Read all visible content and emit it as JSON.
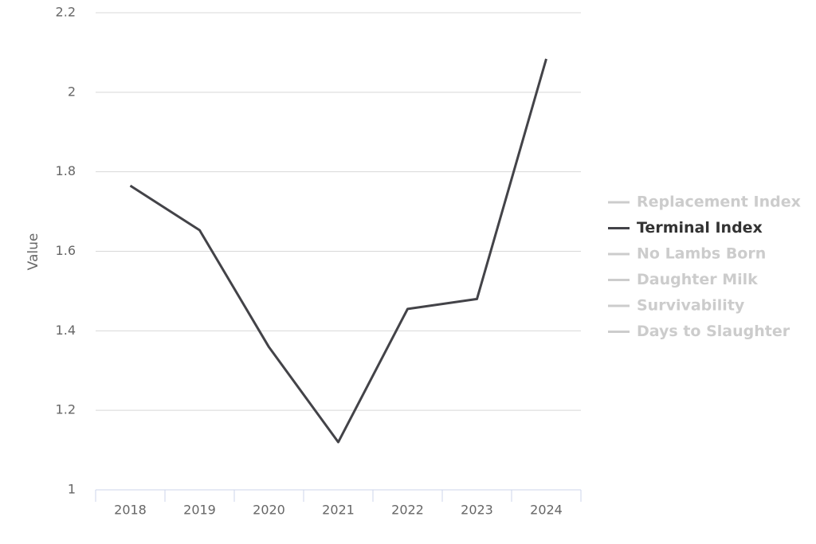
{
  "chart_data": {
    "type": "line",
    "y_label": "Value",
    "categories": [
      "2018",
      "2019",
      "2020",
      "2021",
      "2022",
      "2023",
      "2024"
    ],
    "series": [
      {
        "name": "Replacement Index",
        "color": "#cccccc",
        "visible": false,
        "values": [
          null,
          null,
          null,
          null,
          null,
          null,
          null
        ]
      },
      {
        "name": "Terminal Index",
        "color": "#434348",
        "visible": true,
        "values": [
          1.765,
          1.653,
          1.359,
          1.12,
          1.455,
          1.48,
          2.084
        ]
      },
      {
        "name": "No Lambs Born",
        "color": "#cccccc",
        "visible": false,
        "values": [
          null,
          null,
          null,
          null,
          null,
          null,
          null
        ]
      },
      {
        "name": "Daughter Milk",
        "color": "#cccccc",
        "visible": false,
        "values": [
          null,
          null,
          null,
          null,
          null,
          null,
          null
        ]
      },
      {
        "name": "Survivability",
        "color": "#cccccc",
        "visible": false,
        "values": [
          null,
          null,
          null,
          null,
          null,
          null,
          null
        ]
      },
      {
        "name": "Days to Slaughter",
        "color": "#cccccc",
        "visible": false,
        "values": [
          null,
          null,
          null,
          null,
          null,
          null,
          null
        ]
      }
    ],
    "ylim": [
      1,
      2.2
    ],
    "yticks": [
      1,
      1.2,
      1.4,
      1.6,
      1.8,
      2,
      2.2
    ],
    "grid": true,
    "legend": "right"
  }
}
